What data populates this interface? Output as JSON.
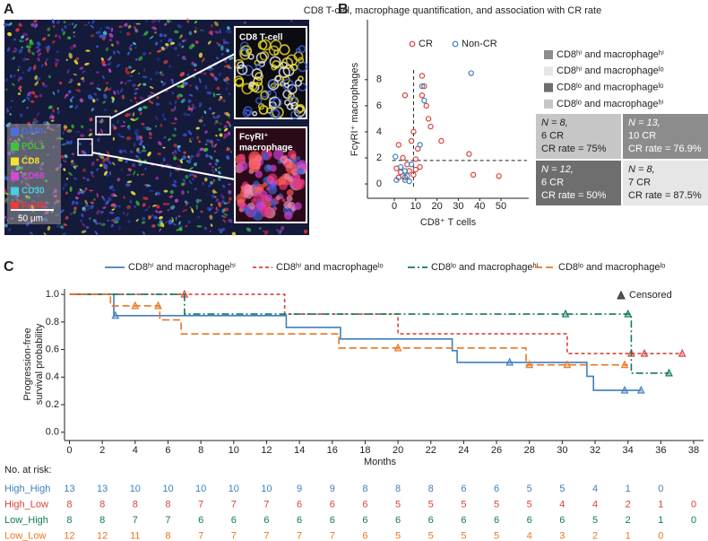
{
  "panels": {
    "a": "A",
    "b": "B",
    "c": "C"
  },
  "image_panel": {
    "channels": [
      {
        "name": "DAPI",
        "color": "#4f6fe0"
      },
      {
        "name": "PDL1",
        "color": "#3cc43c"
      },
      {
        "name": "CD8",
        "color": "#f2e431"
      },
      {
        "name": "CD68",
        "color": "#d448d4"
      },
      {
        "name": "CD30",
        "color": "#46d0e0"
      },
      {
        "name": "FcγRI",
        "color": "#f03a3a"
      }
    ],
    "scale_bar": "50 μm",
    "insets": [
      [
        "CD8 T-cell"
      ],
      [
        "FcγRI⁺",
        "macrophage"
      ]
    ]
  },
  "quadrants": {
    "legend": [
      {
        "name": "CD8ʰⁱ and macrophageʰⁱ",
        "color": "#8c8c8c"
      },
      {
        "name": "CD8ʰⁱ and macrophageˡᵒ",
        "color": "#e6e6e6"
      },
      {
        "name": "CD8ˡᵒ and macrophageˡᵒ",
        "color": "#6e6e6e"
      },
      {
        "name": "CD8ˡᵒ and macrophageʰⁱ",
        "color": "#c6c6c6"
      }
    ],
    "cells": [
      {
        "lines": [
          "N = 8,",
          "6 CR",
          "CR rate = 75%"
        ],
        "color": "#c6c6c6",
        "text_color": "#222222"
      },
      {
        "lines": [
          "N = 13,",
          "10 CR",
          "CR rate = 76.9%"
        ],
        "color": "#8c8c8c",
        "text_color": "#ffffff"
      },
      {
        "lines": [
          "N = 12,",
          "6 CR",
          "CR rate = 50%"
        ],
        "color": "#6e6e6e",
        "text_color": "#ffffff"
      },
      {
        "lines": [
          "N = 8,",
          "7 CR",
          "CR rate = 87.5%"
        ],
        "color": "#e6e6e6",
        "text_color": "#222222"
      }
    ]
  },
  "chart_data": [
    {
      "type": "scatter",
      "title": "CD8 T-cell, macrophage quantification, and association with CR rate",
      "xlabel": "CD8⁺ T cells",
      "ylabel": "FcγRI⁺ macrophages",
      "xlim": [
        -12.6,
        63
      ],
      "ylim": [
        -1.1,
        12.6
      ],
      "xticks": [
        0,
        10,
        20,
        30,
        40,
        50
      ],
      "yticks": [
        0,
        2,
        4,
        6,
        8
      ],
      "legend": "upper left",
      "cutoffs": {
        "x": 9,
        "y": 1.8
      },
      "series": [
        {
          "name": "CR",
          "color": "#d9423a",
          "x": [
            1,
            2,
            3,
            4,
            5,
            5,
            6,
            7,
            8,
            9,
            10,
            11,
            12,
            13,
            13,
            14,
            15,
            16,
            17,
            22,
            35,
            37,
            49,
            10,
            2,
            9
          ],
          "values": [
            1.2,
            3,
            0.9,
            2,
            6.8,
            0.5,
            1.5,
            1.0,
            3.3,
            0.7,
            1.9,
            2.7,
            1.3,
            8.3,
            6.8,
            7.5,
            6,
            5,
            4.4,
            3.3,
            2.3,
            0.7,
            0.6,
            1.1,
            0.5,
            4
          ]
        },
        {
          "name": "Non-CR",
          "color": "#3f7fc0",
          "x": [
            0.5,
            1,
            3,
            4,
            5,
            5,
            6,
            7,
            8,
            12,
            13,
            36,
            14
          ],
          "values": [
            2.1,
            0.3,
            1.3,
            0.6,
            0.3,
            1.0,
            0.6,
            0.2,
            1.5,
            3.0,
            7.5,
            8.5,
            6.4
          ]
        }
      ]
    },
    {
      "type": "line",
      "step": true,
      "xlabel": "Months",
      "ylabel": [
        "Progression-free",
        "survival probability"
      ],
      "xlim": [
        -0.3,
        38.6
      ],
      "ylim": [
        -0.06,
        1.04
      ],
      "xticks": [
        0,
        2,
        4,
        6,
        8,
        10,
        12,
        14,
        16,
        18,
        20,
        22,
        24,
        26,
        28,
        30,
        32,
        34,
        36,
        38
      ],
      "yticks": [
        {
          "value": 0,
          "label": "0.0"
        },
        0.2,
        0.4,
        0.6,
        0.8,
        {
          "value": 1,
          "label": "1.0"
        }
      ],
      "censored_label": "Censored",
      "series": [
        {
          "name": "CD8ʰⁱ and macrophageʰⁱ",
          "color": "#3f7fc0",
          "dash": "none",
          "x": [
            0,
            2.7,
            13.2,
            16.5,
            23.3,
            23.6,
            31.5,
            31.9,
            34.8
          ],
          "values": [
            1,
            0.846,
            0.761,
            0.677,
            0.592,
            0.507,
            0.406,
            0.304,
            0.304
          ],
          "censored_x": [
            2.8,
            26.8,
            33.8,
            34.8
          ],
          "censored_values": [
            0.846,
            0.507,
            0.304,
            0.304
          ]
        },
        {
          "name": "CD8ʰⁱ and macrophageˡᵒ",
          "color": "#d9423a",
          "dash": "4,3",
          "x": [
            0,
            13.1,
            20.0,
            30.3,
            37.3
          ],
          "values": [
            1,
            0.857,
            0.714,
            0.571,
            0.571
          ],
          "censored_x": [
            7.0,
            34.2,
            35.0,
            37.3
          ],
          "censored_values": [
            1,
            0.571,
            0.571,
            0.571
          ]
        },
        {
          "name": "CD8ˡᵒ and macrophageʰⁱ",
          "color": "#107a5c",
          "dash": "8,3,2,3",
          "x": [
            0,
            7.0,
            34.2,
            36.5
          ],
          "values": [
            1,
            0.857,
            0.429,
            0.429
          ],
          "censored_x": [
            30.2,
            34.0,
            36.5
          ],
          "censored_values": [
            0.857,
            0.857,
            0.429
          ]
        },
        {
          "name": "CD8ˡᵒ and macrophageˡᵒ",
          "color": "#e87722",
          "dash": "8,4",
          "x": [
            0,
            2.5,
            5.5,
            6.8,
            16.4,
            27.8,
            34.0
          ],
          "values": [
            1,
            0.917,
            0.815,
            0.713,
            0.611,
            0.489,
            0.489
          ],
          "censored_x": [
            4.0,
            5.4,
            20.0,
            28.0,
            30.3,
            33.8
          ],
          "censored_values": [
            0.917,
            0.917,
            0.611,
            0.489,
            0.489,
            0.489
          ]
        }
      ]
    }
  ],
  "risk_table": {
    "title": "No. at risk:",
    "rows": [
      {
        "label": "High_High",
        "counts": [
          13,
          13,
          10,
          10,
          10,
          10,
          10,
          9,
          9,
          8,
          8,
          8,
          6,
          6,
          5,
          5,
          4,
          1,
          0
        ]
      },
      {
        "label": "High_Low",
        "counts": [
          8,
          8,
          8,
          8,
          7,
          7,
          7,
          6,
          6,
          6,
          5,
          5,
          5,
          5,
          5,
          4,
          4,
          2,
          1,
          0
        ]
      },
      {
        "label": "Low_High",
        "counts": [
          8,
          8,
          7,
          7,
          6,
          6,
          6,
          6,
          6,
          6,
          6,
          6,
          6,
          6,
          6,
          6,
          5,
          2,
          1,
          0
        ]
      },
      {
        "label": "Low_Low",
        "counts": [
          12,
          12,
          11,
          8,
          7,
          7,
          7,
          7,
          7,
          6,
          5,
          5,
          5,
          5,
          4,
          3,
          2,
          1,
          0
        ]
      }
    ]
  }
}
